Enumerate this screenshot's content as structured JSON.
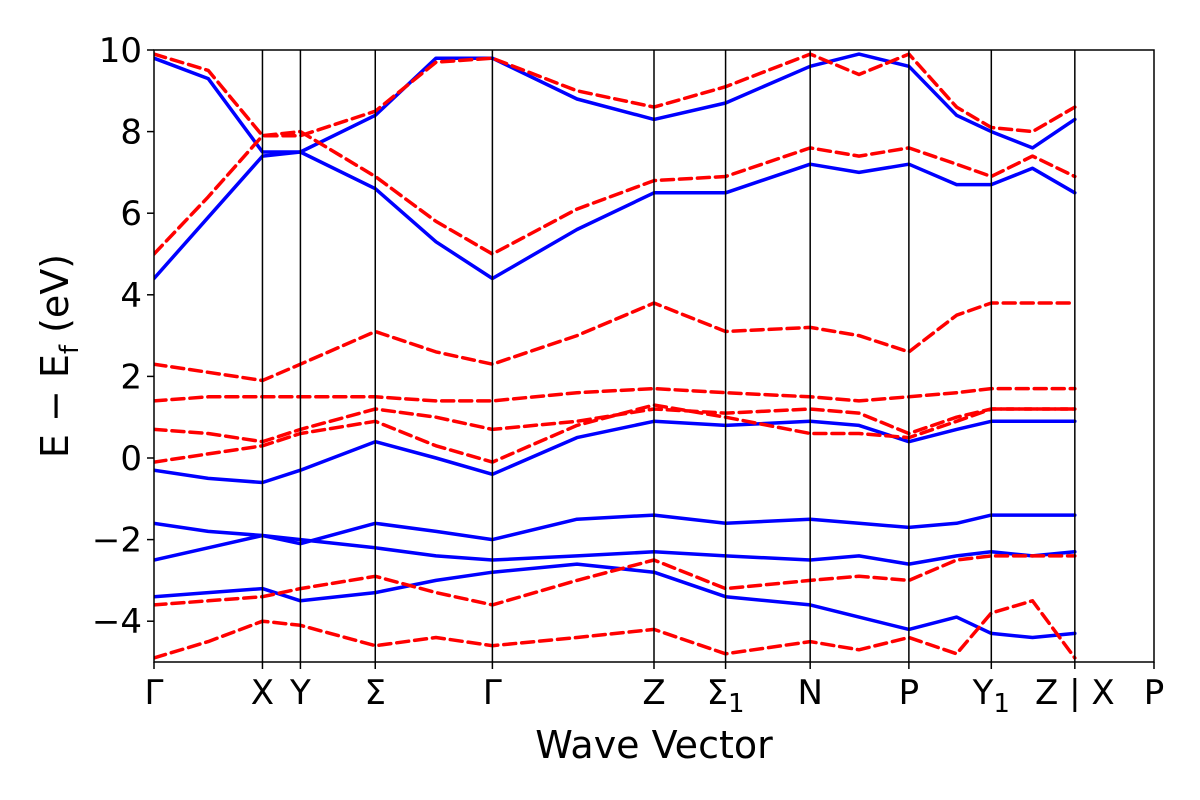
{
  "chart_data": {
    "type": "line",
    "xlabel": "Wave Vector",
    "ylabel": "E − E_f (eV)",
    "ylabel_parts": {
      "main": "E − E",
      "sub": "f",
      "unit": " (eV)"
    },
    "ylim": [
      -5,
      10
    ],
    "yticks": [
      10,
      8,
      6,
      4,
      2,
      0,
      -2,
      -4
    ],
    "ytick_labels": [
      "10",
      "8",
      "6",
      "4",
      "2",
      "0",
      "−2",
      "−4"
    ],
    "grid": false,
    "kpath_ticks": [
      {
        "label": "Γ",
        "sub": "",
        "x": 0.0
      },
      {
        "label": "X",
        "sub": "",
        "x": 1.0
      },
      {
        "label": "Y",
        "sub": "",
        "x": 1.35
      },
      {
        "label": "Σ",
        "sub": "",
        "x": 2.04
      },
      {
        "label": "Γ",
        "sub": "",
        "x": 3.12
      },
      {
        "label": "Z",
        "sub": "",
        "x": 4.61
      },
      {
        "label": "Σ",
        "sub": "1",
        "x": 5.27
      },
      {
        "label": "N",
        "sub": "",
        "x": 6.05
      },
      {
        "label": "P",
        "sub": "",
        "x": 6.96
      },
      {
        "label": "Y",
        "sub": "1",
        "x": 7.72
      },
      {
        "label": "Z | X",
        "sub": "",
        "x": 8.49
      },
      {
        "label": "P",
        "sub": "",
        "x": 9.22
      }
    ],
    "series": [
      {
        "style": "solid",
        "color": "#0000ff",
        "bands": [
          {
            "x": [
              0,
              0.5,
              1.0,
              1.35,
              2.04,
              2.6,
              3.12,
              3.9,
              4.61,
              5.27,
              6.05,
              6.5,
              6.96,
              7.4,
              7.72,
              8.1,
              8.49
            ],
            "y": [
              9.8,
              9.3,
              7.5,
              7.5,
              8.4,
              9.8,
              9.8,
              8.8,
              8.3,
              8.7,
              9.6,
              9.9,
              9.6,
              8.4,
              8.0,
              7.6,
              8.3
            ]
          },
          {
            "x": [
              0,
              0.5,
              1.0,
              1.35,
              2.04,
              2.6,
              3.12,
              3.9,
              4.61,
              5.27,
              6.05,
              6.5,
              6.96,
              7.4,
              7.72,
              8.1,
              8.49
            ],
            "y": [
              4.4,
              5.9,
              7.4,
              7.5,
              6.6,
              5.3,
              4.4,
              5.6,
              6.5,
              6.5,
              7.2,
              7.0,
              7.2,
              6.7,
              6.7,
              7.1,
              6.5
            ]
          },
          {
            "x": [
              0,
              0.5,
              1.0,
              1.35,
              2.04,
              2.6,
              3.12,
              3.9,
              4.61,
              5.27,
              6.05,
              6.5,
              6.96,
              7.4,
              7.72,
              8.1,
              8.49
            ],
            "y": [
              -0.3,
              -0.5,
              -0.6,
              -0.3,
              0.4,
              0.0,
              -0.4,
              0.5,
              0.9,
              0.8,
              0.9,
              0.8,
              0.4,
              0.7,
              0.9,
              0.9,
              0.9
            ]
          },
          {
            "x": [
              0,
              0.5,
              1.0,
              1.35,
              2.04,
              2.6,
              3.12,
              3.9,
              4.61,
              5.27,
              6.05,
              6.5,
              6.96,
              7.4,
              7.72,
              8.1,
              8.49
            ],
            "y": [
              -1.6,
              -1.8,
              -1.9,
              -2.1,
              -1.6,
              -1.8,
              -2.0,
              -1.5,
              -1.4,
              -1.6,
              -1.5,
              -1.6,
              -1.7,
              -1.6,
              -1.4,
              -1.4,
              -1.4
            ]
          },
          {
            "x": [
              0,
              0.5,
              1.0,
              1.35,
              2.04,
              2.6,
              3.12,
              3.9,
              4.61,
              5.27,
              6.05,
              6.5,
              6.96,
              7.4,
              7.72,
              8.1,
              8.49
            ],
            "y": [
              -2.5,
              -2.2,
              -1.9,
              -2.0,
              -2.2,
              -2.4,
              -2.5,
              -2.4,
              -2.3,
              -2.4,
              -2.5,
              -2.4,
              -2.6,
              -2.4,
              -2.3,
              -2.4,
              -2.3
            ]
          },
          {
            "x": [
              0,
              0.5,
              1.0,
              1.35,
              2.04,
              2.6,
              3.12,
              3.9,
              4.61,
              5.27,
              6.05,
              6.5,
              6.96,
              7.4,
              7.72,
              8.1,
              8.49
            ],
            "y": [
              -3.4,
              -3.3,
              -3.2,
              -3.5,
              -3.3,
              -3.0,
              -2.8,
              -2.6,
              -2.8,
              -3.4,
              -3.6,
              -3.9,
              -4.2,
              -3.9,
              -4.3,
              -4.4,
              -4.3
            ]
          }
        ]
      },
      {
        "style": "dashed",
        "color": "#ff0000",
        "bands": [
          {
            "x": [
              0,
              0.5,
              1.0,
              1.35,
              2.04,
              2.6,
              3.12,
              3.9,
              4.61,
              5.27,
              6.05,
              6.5,
              6.96,
              7.4,
              7.72,
              8.1,
              8.49
            ],
            "y": [
              9.9,
              9.5,
              7.9,
              7.9,
              8.5,
              9.7,
              9.8,
              9.0,
              8.6,
              9.1,
              9.9,
              9.4,
              9.9,
              8.6,
              8.1,
              8.0,
              8.6
            ]
          },
          {
            "x": [
              0,
              0.5,
              1.0,
              1.35,
              2.04,
              2.6,
              3.12,
              3.9,
              4.61,
              5.27,
              6.05,
              6.5,
              6.96,
              7.4,
              7.72,
              8.1,
              8.49
            ],
            "y": [
              5.0,
              6.4,
              7.9,
              8.0,
              6.9,
              5.8,
              5.0,
              6.1,
              6.8,
              6.9,
              7.6,
              7.4,
              7.6,
              7.2,
              6.9,
              7.4,
              6.9
            ]
          },
          {
            "x": [
              0,
              0.5,
              1.0,
              1.35,
              2.04,
              2.6,
              3.12,
              3.9,
              4.61,
              5.27,
              6.05,
              6.5,
              6.96,
              7.4,
              7.72,
              8.1,
              8.49
            ],
            "y": [
              2.3,
              2.1,
              1.9,
              2.3,
              3.1,
              2.6,
              2.3,
              3.0,
              3.8,
              3.1,
              3.2,
              3.0,
              2.6,
              3.5,
              3.8,
              3.8,
              3.8
            ]
          },
          {
            "x": [
              0,
              0.5,
              1.0,
              1.35,
              2.04,
              2.6,
              3.12,
              3.9,
              4.61,
              5.27,
              6.05,
              6.5,
              6.96,
              7.4,
              7.72,
              8.1,
              8.49
            ],
            "y": [
              1.4,
              1.5,
              1.5,
              1.5,
              1.5,
              1.4,
              1.4,
              1.6,
              1.7,
              1.6,
              1.5,
              1.4,
              1.5,
              1.6,
              1.7,
              1.7,
              1.7
            ]
          },
          {
            "x": [
              0,
              0.5,
              1.0,
              1.35,
              2.04,
              2.6,
              3.12,
              3.9,
              4.61,
              5.27,
              6.05,
              6.5,
              6.96,
              7.4,
              7.72,
              8.1,
              8.49
            ],
            "y": [
              0.7,
              0.6,
              0.4,
              0.7,
              1.2,
              1.0,
              0.7,
              0.9,
              1.2,
              1.1,
              1.2,
              1.1,
              0.6,
              1.0,
              1.2,
              1.2,
              1.2
            ]
          },
          {
            "x": [
              0,
              0.5,
              1.0,
              1.35,
              2.04,
              2.6,
              3.12,
              3.9,
              4.61,
              5.27,
              6.05,
              6.5,
              6.96,
              7.4,
              7.72,
              8.1,
              8.49
            ],
            "y": [
              -0.1,
              0.1,
              0.3,
              0.6,
              0.9,
              0.3,
              -0.1,
              0.8,
              1.3,
              1.0,
              0.6,
              0.6,
              0.5,
              0.9,
              1.2,
              1.2,
              1.2
            ]
          },
          {
            "x": [
              0,
              0.5,
              1.0,
              1.35,
              2.04,
              2.6,
              3.12,
              3.9,
              4.61,
              5.27,
              6.05,
              6.5,
              6.96,
              7.4,
              7.72,
              8.1,
              8.49
            ],
            "y": [
              -3.6,
              -3.5,
              -3.4,
              -3.2,
              -2.9,
              -3.3,
              -3.6,
              -3.0,
              -2.5,
              -3.2,
              -3.0,
              -2.9,
              -3.0,
              -2.5,
              -2.4,
              -2.4,
              -2.4
            ]
          },
          {
            "x": [
              0,
              0.5,
              1.0,
              1.35,
              2.04,
              2.6,
              3.12,
              3.9,
              4.61,
              5.27,
              6.05,
              6.5,
              6.96,
              7.4,
              7.72,
              8.1,
              8.49
            ],
            "y": [
              -4.9,
              -4.5,
              -4.0,
              -4.1,
              -4.6,
              -4.4,
              -4.6,
              -4.4,
              -4.2,
              -4.8,
              -4.5,
              -4.7,
              -4.4,
              -4.8,
              -3.8,
              -3.5,
              -4.9
            ]
          }
        ]
      }
    ]
  }
}
